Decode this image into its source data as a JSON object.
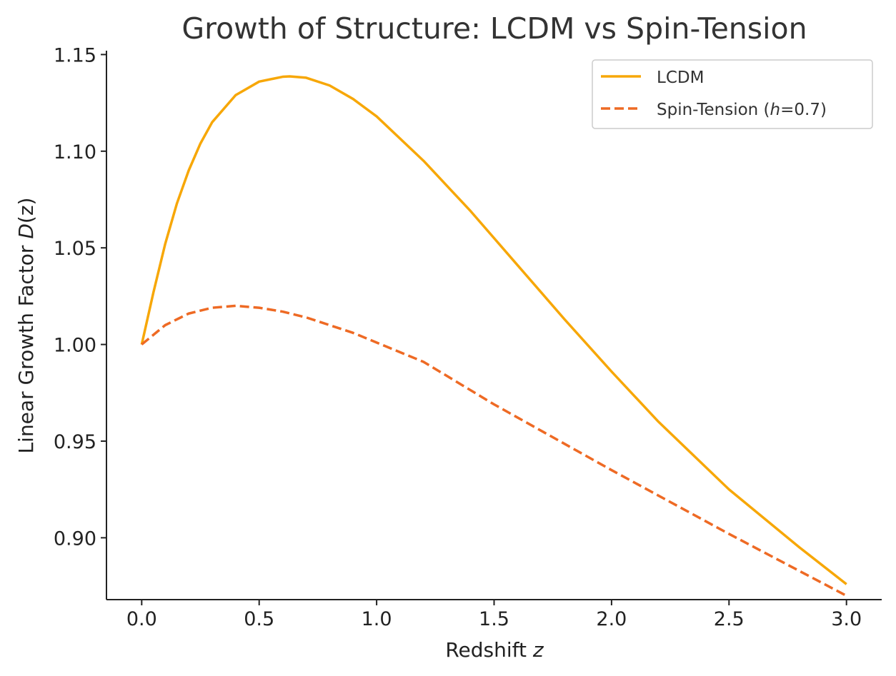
{
  "chart_data": {
    "type": "line",
    "title": "Growth of Structure: LCDM vs Spin-Tension",
    "xlabel": {
      "prefix": "Redshift ",
      "var": "z",
      "suffix": ""
    },
    "ylabel": {
      "prefix": "Linear Growth Factor ",
      "var": "D",
      "suffix": "(z)"
    },
    "xlim": [
      -0.15,
      3.15
    ],
    "ylim": [
      0.868,
      1.152
    ],
    "xticks": [
      0.0,
      0.5,
      1.0,
      1.5,
      2.0,
      2.5,
      3.0
    ],
    "xtick_labels": [
      "0.0",
      "0.5",
      "1.0",
      "1.5",
      "2.0",
      "2.5",
      "3.0"
    ],
    "yticks": [
      0.9,
      0.95,
      1.0,
      1.05,
      1.1,
      1.15
    ],
    "ytick_labels": [
      "0.90",
      "0.95",
      "1.00",
      "1.05",
      "1.10",
      "1.15"
    ],
    "grid": false,
    "legend_position": "top-right",
    "series": [
      {
        "name": "LCDM",
        "color": "#F7A707",
        "dash": "solid",
        "x": [
          0.0,
          0.05,
          0.1,
          0.15,
          0.2,
          0.25,
          0.3,
          0.4,
          0.5,
          0.6,
          0.63,
          0.7,
          0.8,
          0.9,
          1.0,
          1.2,
          1.4,
          1.5,
          1.6,
          1.8,
          2.0,
          2.2,
          2.5,
          2.8,
          3.0
        ],
        "y": [
          1.0,
          1.027,
          1.052,
          1.073,
          1.09,
          1.104,
          1.115,
          1.129,
          1.136,
          1.1385,
          1.1387,
          1.138,
          1.134,
          1.127,
          1.118,
          1.095,
          1.069,
          1.055,
          1.041,
          1.013,
          0.986,
          0.96,
          0.925,
          0.895,
          0.876
        ]
      },
      {
        "name": {
          "prefix": "Spin-Tension (",
          "var": "h",
          "suffix": "=0.7)"
        },
        "color": "#EE6A24",
        "dash": "dashed",
        "x": [
          0.0,
          0.1,
          0.2,
          0.3,
          0.4,
          0.5,
          0.6,
          0.7,
          0.8,
          0.9,
          1.0,
          1.2,
          1.5,
          2.0,
          2.5,
          3.0
        ],
        "y": [
          1.0,
          1.01,
          1.016,
          1.019,
          1.02,
          1.019,
          1.017,
          1.014,
          1.01,
          1.006,
          1.001,
          0.991,
          0.969,
          0.935,
          0.902,
          0.87
        ]
      }
    ]
  }
}
